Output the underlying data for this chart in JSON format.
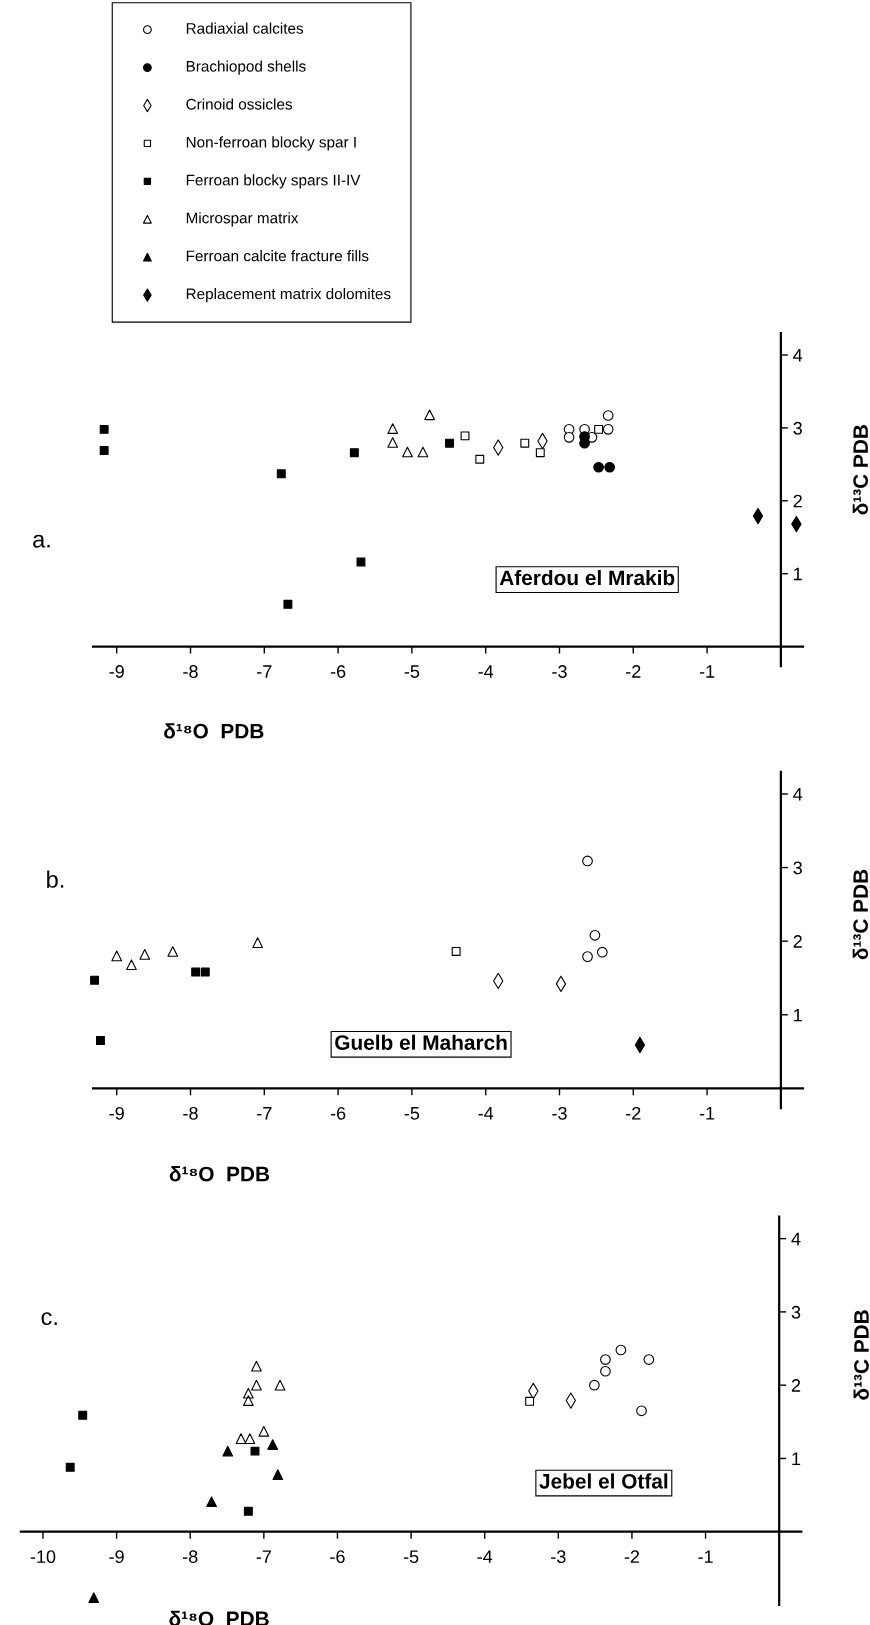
{
  "chart_data": [
    {
      "type": "scatter",
      "xlabel": "δ¹⁸O  PDB",
      "ylabel": "δ¹³C PDB",
      "annotations": [
        "a.",
        "Aferdou el Mrakib"
      ],
      "xlim": [
        -9.32,
        0.3
      ],
      "ylim": [
        -0.27,
        4.3
      ],
      "xticks": [
        -9,
        -8,
        -7,
        -6,
        -5,
        -4,
        -3,
        -2,
        -1
      ],
      "yticks": [
        1,
        2,
        3,
        4
      ],
      "grid": false,
      "legend": "top",
      "series": [
        {
          "name": "Radiaxial calcites",
          "color": "#ffffff",
          "marker": "circle",
          "x": [
            -2.87,
            -2.87,
            -2.66,
            -2.56,
            -2.34,
            -2.34
          ],
          "values": [
            2.98,
            2.87,
            2.98,
            2.87,
            3.17,
            2.98
          ]
        },
        {
          "name": "Brachiopod shells",
          "color": "#000000",
          "marker": "circle",
          "x": [
            -2.66,
            -2.66,
            -2.47,
            -2.32
          ],
          "values": [
            2.88,
            2.79,
            2.46,
            2.46
          ]
        },
        {
          "name": "Crinoid ossicles",
          "color": "#ffffff",
          "marker": "diamond",
          "x": [
            -3.83,
            -3.23
          ],
          "values": [
            2.73,
            2.82
          ]
        },
        {
          "name": "Non-ferroan blocky spar I",
          "color": "#ffffff",
          "marker": "square",
          "x": [
            -4.28,
            -4.08,
            -3.47,
            -3.26,
            -2.47
          ],
          "values": [
            2.89,
            2.57,
            2.79,
            2.66,
            2.98
          ]
        },
        {
          "name": "Ferroan blocky spars II-IV",
          "color": "#000000",
          "marker": "square",
          "x": [
            -9.17,
            -9.17,
            -6.77,
            -6.68,
            -5.78,
            -5.69,
            -4.49
          ],
          "values": [
            2.98,
            2.69,
            2.37,
            0.58,
            2.66,
            1.16,
            2.79
          ]
        },
        {
          "name": "Microspar matrix",
          "color": "#ffffff",
          "marker": "triangle",
          "x": [
            -5.26,
            -5.26,
            -5.06,
            -4.85,
            -4.76
          ],
          "values": [
            2.99,
            2.8,
            2.67,
            2.67,
            3.18
          ]
        },
        {
          "name": "Ferroan calcite fracture fills",
          "color": "#000000",
          "marker": "triangle"
        },
        {
          "name": "Replacement matrix dolomites",
          "color": "#000000",
          "marker": "diamond",
          "x": [
            -0.31,
            0.21
          ],
          "values": [
            1.79,
            1.68
          ]
        }
      ]
    },
    {
      "type": "scatter",
      "xlabel": "δ¹⁸O  PDB",
      "ylabel": "δ¹³C PDB",
      "annotations": [
        "b.",
        "Guelb el Maharch"
      ],
      "xlim": [
        -9.32,
        0.3
      ],
      "ylim": [
        -0.27,
        4.3
      ],
      "xticks": [
        -9,
        -8,
        -7,
        -6,
        -5,
        -4,
        -3,
        -2,
        -1
      ],
      "yticks": [
        1,
        2,
        3,
        4
      ],
      "grid": false,
      "series": [
        {
          "color": "#ffffff",
          "marker": "circle",
          "x": [
            -2.62,
            -2.52,
            -2.62,
            -2.42
          ],
          "values": [
            3.09,
            2.08,
            1.79,
            1.85
          ]
        },
        {
          "color": "#ffffff",
          "marker": "diamond",
          "x": [
            -3.83,
            -2.98
          ],
          "values": [
            1.46,
            1.42
          ]
        },
        {
          "color": "#ffffff",
          "marker": "square",
          "x": [
            -4.4
          ],
          "values": [
            1.86
          ]
        },
        {
          "color": "#000000",
          "marker": "square",
          "x": [
            -9.3,
            -9.22,
            -7.93,
            -7.8
          ],
          "values": [
            1.47,
            0.65,
            1.58,
            1.58
          ]
        },
        {
          "color": "#ffffff",
          "marker": "triangle",
          "x": [
            -9.0,
            -8.8,
            -8.62,
            -8.24,
            -7.09
          ],
          "values": [
            1.8,
            1.68,
            1.82,
            1.86,
            1.98
          ]
        },
        {
          "color": "#000000",
          "marker": "diamond",
          "x": [
            -1.91
          ],
          "values": [
            0.59
          ]
        }
      ]
    },
    {
      "type": "scatter",
      "xlabel": "δ¹⁸O  PDB",
      "ylabel": "δ¹³C PDB",
      "annotations": [
        "c.",
        "Jebel el Otfal"
      ],
      "xlim": [
        -10.3,
        0.3
      ],
      "ylim": [
        -1.0,
        4.3
      ],
      "xticks": [
        -10,
        -9,
        -8,
        -7,
        -6,
        -5,
        -4,
        -3,
        -2,
        -1
      ],
      "yticks": [
        1,
        2,
        3,
        4
      ],
      "grid": false,
      "series": [
        {
          "color": "#ffffff",
          "marker": "circle",
          "x": [
            -2.15,
            -2.36,
            -2.36,
            -2.51,
            -1.77,
            -1.87
          ],
          "values": [
            2.48,
            2.35,
            2.19,
            2.0,
            2.35,
            1.65
          ]
        },
        {
          "color": "#ffffff",
          "marker": "diamond",
          "x": [
            -3.34,
            -2.83
          ],
          "values": [
            1.92,
            1.79
          ]
        },
        {
          "color": "#ffffff",
          "marker": "square",
          "x": [
            -3.39
          ],
          "values": [
            1.78
          ]
        },
        {
          "color": "#000000",
          "marker": "square",
          "x": [
            -9.46,
            -9.63,
            -7.12,
            -7.21
          ],
          "values": [
            1.59,
            0.88,
            1.1,
            0.28
          ]
        },
        {
          "color": "#ffffff",
          "marker": "triangle",
          "x": [
            -7.1,
            -7.21,
            -7.21,
            -7.1,
            -6.78,
            -7.31,
            -7.19,
            -7.0
          ],
          "values": [
            2.26,
            1.89,
            1.79,
            2.0,
            2.0,
            1.27,
            1.27,
            1.37
          ]
        },
        {
          "color": "#000000",
          "marker": "triangle",
          "x": [
            -7.49,
            -6.88,
            -6.81,
            -7.71,
            -9.31
          ],
          "values": [
            1.1,
            1.19,
            0.78,
            0.41,
            -0.9
          ]
        }
      ]
    }
  ]
}
